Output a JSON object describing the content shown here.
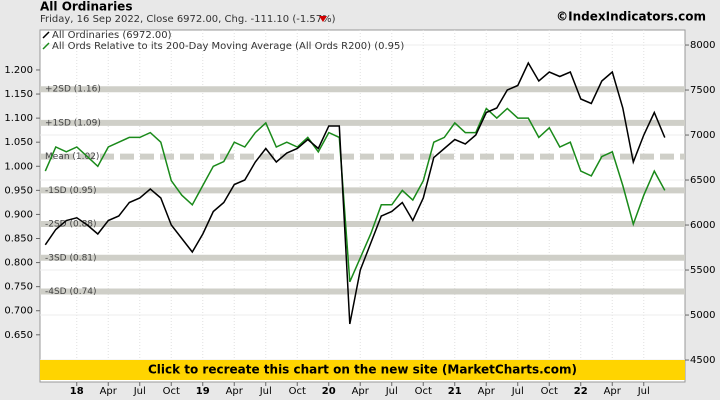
{
  "chart_data": {
    "type": "line",
    "title": "All Ordinaries",
    "subtitle": "Friday, 16 Sep 2022, Close 6972.00, Chg. -111.10 (-1.57%)",
    "credit": "©IndexIndicators.com",
    "banner": "Click to recreate this chart on the new site (MarketCharts.com)",
    "categories": [
      null,
      null,
      null,
      "18",
      null,
      null,
      "Apr",
      null,
      null,
      "Jul",
      null,
      null,
      "Oct",
      null,
      null,
      "19",
      null,
      null,
      "Apr",
      null,
      null,
      "Jul",
      null,
      null,
      "Oct",
      null,
      null,
      "20",
      null,
      null,
      "Apr",
      null,
      null,
      "Jul",
      null,
      null,
      "Oct",
      null,
      null,
      "21",
      null,
      null,
      "Apr",
      null,
      null,
      "Jul",
      null,
      null,
      "Oct",
      null,
      null,
      "22",
      null,
      null,
      "Apr",
      null,
      null,
      "Jul",
      null,
      null
    ],
    "series": [
      {
        "name": "All Ordinaries (6972.00)",
        "color": "#000000",
        "axis": "y2",
        "values": [
          5780,
          5950,
          6050,
          6080,
          6000,
          5900,
          6050,
          6100,
          6250,
          6300,
          6400,
          6300,
          6000,
          5850,
          5700,
          5900,
          6150,
          6250,
          6450,
          6500,
          6700,
          6850,
          6700,
          6800,
          6850,
          6950,
          6850,
          7100,
          7100,
          4900,
          5500,
          5800,
          6100,
          6150,
          6250,
          6050,
          6300,
          6750,
          6850,
          6950,
          6900,
          7000,
          7250,
          7300,
          7500,
          7550,
          7800,
          7600,
          7700,
          7650,
          7700,
          7400,
          7350,
          7600,
          7700,
          7300,
          6700,
          7000,
          7250,
          6972
        ]
      },
      {
        "name": "All Ords Relative to its 200-Day Moving Average (All Ords R200) (0.95)",
        "color": "#1a8a1a",
        "axis": "y",
        "values": [
          0.99,
          1.04,
          1.03,
          1.04,
          1.02,
          1.0,
          1.04,
          1.05,
          1.06,
          1.06,
          1.07,
          1.05,
          0.97,
          0.94,
          0.92,
          0.96,
          1.0,
          1.01,
          1.05,
          1.04,
          1.07,
          1.09,
          1.04,
          1.05,
          1.04,
          1.06,
          1.03,
          1.07,
          1.06,
          0.76,
          0.81,
          0.86,
          0.92,
          0.92,
          0.95,
          0.93,
          0.97,
          1.05,
          1.06,
          1.09,
          1.07,
          1.07,
          1.12,
          1.1,
          1.12,
          1.1,
          1.1,
          1.06,
          1.08,
          1.04,
          1.05,
          0.99,
          0.98,
          1.02,
          1.03,
          0.96,
          0.88,
          0.94,
          0.99,
          0.95
        ]
      }
    ],
    "ylim": [
      0.552,
      1.283
    ],
    "yticks": [
      {
        "value": 0.65,
        "label": "0.650"
      },
      {
        "value": 0.7,
        "label": "0.700"
      },
      {
        "value": 0.75,
        "label": "0.750"
      },
      {
        "value": 0.8,
        "label": "0.800"
      },
      {
        "value": 0.85,
        "label": "0.850"
      },
      {
        "value": 0.9,
        "label": "0.900"
      },
      {
        "value": 0.95,
        "label": "0.950"
      },
      {
        "value": 1.0,
        "label": "1.000"
      },
      {
        "value": 1.05,
        "label": "1.050"
      },
      {
        "value": 1.1,
        "label": "1.100"
      },
      {
        "value": 1.15,
        "label": "1.150"
      },
      {
        "value": 1.2,
        "label": "1.200"
      }
    ],
    "y2lim": [
      4256,
      8167
    ],
    "y2ticks": [
      4500,
      5000,
      5500,
      6000,
      6500,
      7000,
      7500,
      8000
    ],
    "bands": [
      {
        "value": 1.16,
        "label": "+2SD (1.16)"
      },
      {
        "value": 1.09,
        "label": "+1SD (1.09)"
      },
      {
        "value": 1.02,
        "label": "Mean (1.02)",
        "dashed": true
      },
      {
        "value": 0.95,
        "label": "-1SD (0.95)"
      },
      {
        "value": 0.88,
        "label": "-2SD (0.88)"
      },
      {
        "value": 0.81,
        "label": "-3SD (0.81)"
      },
      {
        "value": 0.74,
        "label": "-4SD (0.74)"
      }
    ],
    "grid": true
  }
}
